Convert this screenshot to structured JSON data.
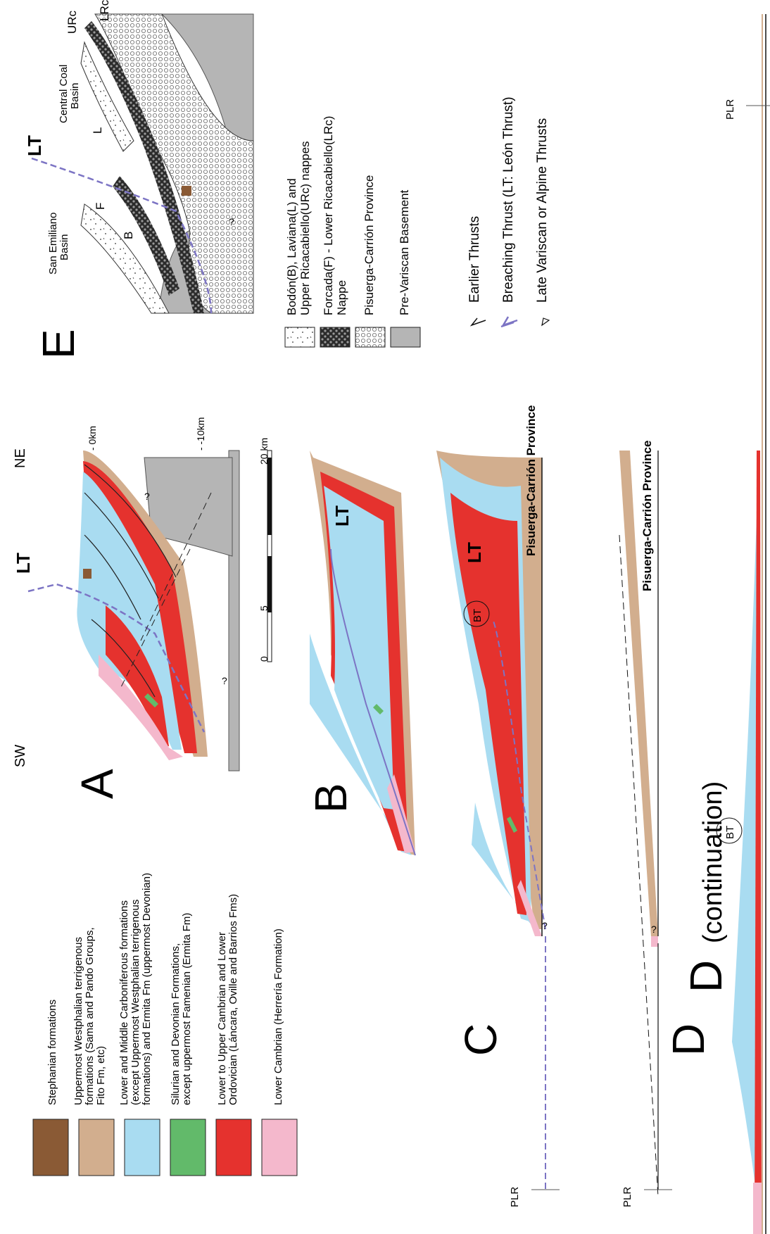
{
  "legend_left": [
    {
      "color": "#8a5a35",
      "text": [
        "Stephanian formations"
      ]
    },
    {
      "color": "#d2ae8e",
      "text": [
        "Uppermost Westphalian terrigenous",
        "formations (Sama and Pando Groups,",
        "Fito Fm, etc)"
      ]
    },
    {
      "color": "#a9dcf1",
      "text": [
        "Lower and Middle Carboniferous formations",
        "(except Uppermost Westphalian terrigenous",
        "formations) and Ermita Fm (uppermost Devonian)"
      ]
    },
    {
      "color": "#62ba6a",
      "text": [
        "Silurian and Devonian Formations,",
        "except uppermost Famenian (Ermita Fm)"
      ]
    },
    {
      "color": "#e5322e",
      "text": [
        "Lower to Upper Cambrian and Lower",
        "Ordovician (Láncara, Oville and Barrios Fms)"
      ]
    },
    {
      "color": "#f4b8cc",
      "text": [
        "Lower Cambrian (Herrería Formation)"
      ]
    }
  ],
  "panels": {
    "A": "A",
    "B": "B",
    "C": "C",
    "D": "D",
    "Dcont_letter": "D",
    "Dcont_word": "(continuation)",
    "E": "E"
  },
  "labels": {
    "sw": "SW",
    "ne": "NE",
    "lt": "LT",
    "bt": "BT",
    "plr": "PLR",
    "pisuerga": "Pisuerga-Carrión Province",
    "qmark": "?",
    "km0": "- 0km",
    "km10": "- -10km",
    "scale0": "0",
    "scale5": "5",
    "scale20": "20 km",
    "san_emiliano": [
      "San Emiliano",
      "Basin"
    ],
    "central_coal": [
      "Central Coal",
      "Basin"
    ],
    "urc": "URc",
    "lrc": "LRc",
    "b": "B",
    "f": "F",
    "l": "L"
  },
  "legend_e": [
    {
      "pattern": "dots",
      "text": [
        "Bodón(B), Laviana(L) and",
        "Upper Ricacabiello(URc) nappes"
      ]
    },
    {
      "pattern": "hatch",
      "text": [
        "Forcada(F) - Lower Ricacabiello(LRc)",
        "Nappe"
      ]
    },
    {
      "pattern": "circles",
      "text": [
        "Pisuerga-Carrión Province"
      ]
    },
    {
      "pattern": "grey",
      "text": [
        "Pre-Variscan Basement"
      ]
    }
  ],
  "legend_thrusts": [
    {
      "symbol": "earlier",
      "text": "Earlier Thrusts"
    },
    {
      "symbol": "breaching",
      "text": "Breaching Thrust (LT: León Thrust)"
    },
    {
      "symbol": "late",
      "text": "Late Variscan or Alpine Thrusts"
    }
  ],
  "colors": {
    "stephanian": "#8a5a35",
    "westphalian": "#d2ae8e",
    "carboniferous": "#a9dcf1",
    "silurian_devonian": "#62ba6a",
    "cambro_ordovician": "#e5322e",
    "lower_cambrian": "#f4b8cc",
    "basement": "#b5b5b5",
    "breaching_thrust": "#7c74c4"
  }
}
